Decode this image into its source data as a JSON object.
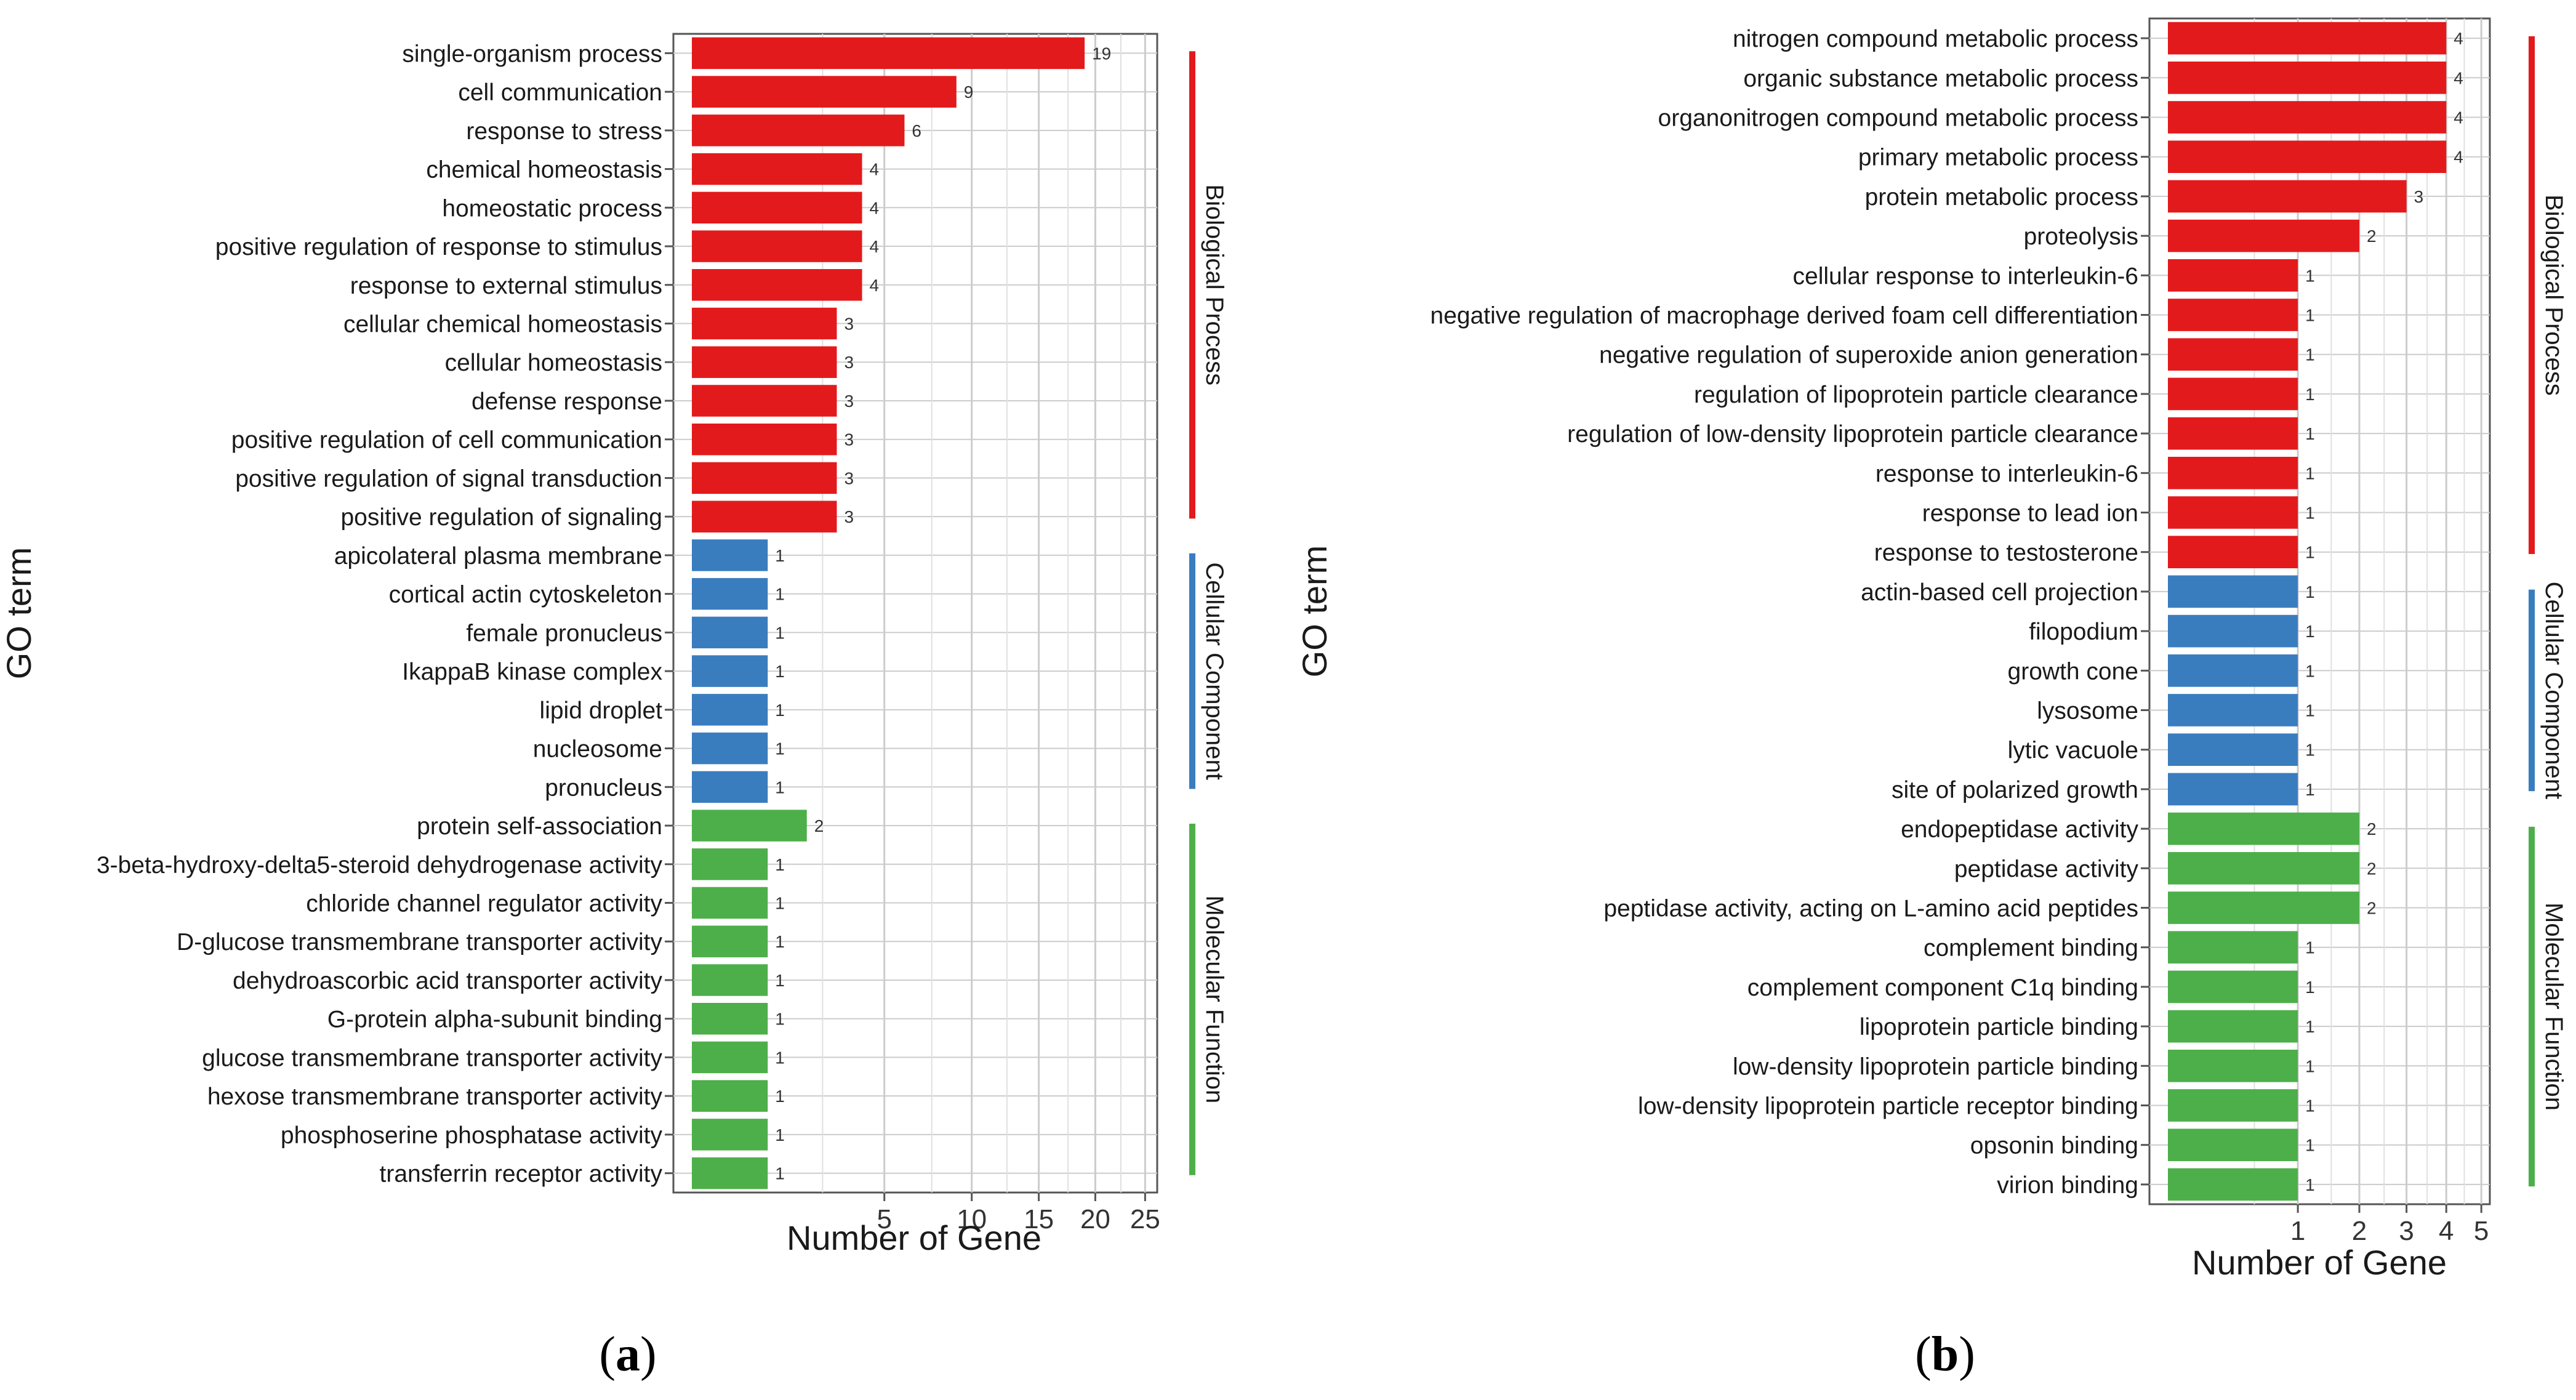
{
  "colors": {
    "biological_process": "#e31a1c",
    "cellular_component": "#3a7dbf",
    "molecular_function": "#4daf4a",
    "grid": "#cccccc",
    "frame": "#555555"
  },
  "captions": {
    "a": "a",
    "b": "b"
  },
  "chart_data": [
    {
      "type": "bar",
      "orientation": "horizontal",
      "panel": "a",
      "xlabel": "Number of Gene",
      "ylabel": "GO term",
      "xscale": "sqrt",
      "xlim": [
        0,
        25
      ],
      "xticks": [
        5,
        10,
        15,
        20,
        25
      ],
      "legend_position": "right",
      "categories": [
        "single-organism process",
        "cell communication",
        "response to stress",
        "chemical homeostasis",
        "homeostatic process",
        "positive regulation of response to stimulus",
        "response to external stimulus",
        "cellular chemical homeostasis",
        "cellular homeostasis",
        "defense response",
        "positive regulation of cell communication",
        "positive regulation of signal transduction",
        "positive regulation of signaling",
        "apicolateral plasma membrane",
        "cortical actin cytoskeleton",
        "female pronucleus",
        "IkappaB kinase complex",
        "lipid droplet",
        "nucleosome",
        "pronucleus",
        "protein self-association",
        "3-beta-hydroxy-delta5-steroid dehydrogenase activity",
        "chloride channel regulator activity",
        "D-glucose transmembrane transporter activity",
        "dehydroascorbic acid transporter activity",
        "G-protein alpha-subunit binding",
        "glucose transmembrane transporter activity",
        "hexose transmembrane transporter activity",
        "phosphoserine phosphatase activity",
        "transferrin receptor activity"
      ],
      "values": [
        19,
        9,
        6,
        4,
        4,
        4,
        4,
        3,
        3,
        3,
        3,
        3,
        3,
        1,
        1,
        1,
        1,
        1,
        1,
        1,
        2,
        1,
        1,
        1,
        1,
        1,
        1,
        1,
        1,
        1
      ],
      "groups": [
        "BP",
        "BP",
        "BP",
        "BP",
        "BP",
        "BP",
        "BP",
        "BP",
        "BP",
        "BP",
        "BP",
        "BP",
        "BP",
        "CC",
        "CC",
        "CC",
        "CC",
        "CC",
        "CC",
        "CC",
        "MF",
        "MF",
        "MF",
        "MF",
        "MF",
        "MF",
        "MF",
        "MF",
        "MF",
        "MF"
      ],
      "legend": [
        {
          "key": "BP",
          "label": "Biological Process"
        },
        {
          "key": "CC",
          "label": "Cellular Component"
        },
        {
          "key": "MF",
          "label": "Molecular Function"
        }
      ]
    },
    {
      "type": "bar",
      "orientation": "horizontal",
      "panel": "b",
      "xlabel": "Number of Gene",
      "ylabel": "GO term",
      "xscale": "sqrt",
      "xlim": [
        0,
        5
      ],
      "xticks": [
        1,
        2,
        3,
        4,
        5
      ],
      "legend_position": "right",
      "categories": [
        "nitrogen compound metabolic process",
        "organic substance metabolic process",
        "organonitrogen compound metabolic process",
        "primary metabolic process",
        "protein metabolic process",
        "proteolysis",
        "cellular response to interleukin-6",
        "negative regulation of macrophage derived foam cell differentiation",
        "negative regulation of superoxide anion generation",
        "regulation of lipoprotein particle clearance",
        "regulation of low-density lipoprotein particle clearance",
        "response to interleukin-6",
        "response to lead ion",
        "response to testosterone",
        "actin-based cell projection",
        "filopodium",
        "growth cone",
        "lysosome",
        "lytic vacuole",
        "site of polarized growth",
        "endopeptidase activity",
        "peptidase activity",
        "peptidase activity, acting on L-amino acid peptides",
        "complement binding",
        "complement component C1q binding",
        "lipoprotein particle binding",
        "low-density lipoprotein particle binding",
        "low-density lipoprotein particle receptor binding",
        "opsonin binding",
        "virion binding"
      ],
      "values": [
        4,
        4,
        4,
        4,
        3,
        2,
        1,
        1,
        1,
        1,
        1,
        1,
        1,
        1,
        1,
        1,
        1,
        1,
        1,
        1,
        2,
        2,
        2,
        1,
        1,
        1,
        1,
        1,
        1,
        1
      ],
      "groups": [
        "BP",
        "BP",
        "BP",
        "BP",
        "BP",
        "BP",
        "BP",
        "BP",
        "BP",
        "BP",
        "BP",
        "BP",
        "BP",
        "BP",
        "CC",
        "CC",
        "CC",
        "CC",
        "CC",
        "CC",
        "MF",
        "MF",
        "MF",
        "MF",
        "MF",
        "MF",
        "MF",
        "MF",
        "MF",
        "MF"
      ],
      "legend": [
        {
          "key": "BP",
          "label": "Biological Process"
        },
        {
          "key": "CC",
          "label": "Cellular Component"
        },
        {
          "key": "MF",
          "label": "Molecular Function"
        }
      ]
    }
  ]
}
